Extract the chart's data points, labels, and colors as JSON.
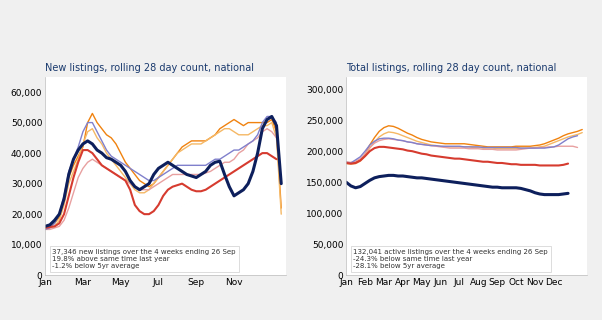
{
  "left_title": "New listings, rolling 28 day count, national",
  "right_title": "Total listings, rolling 28 day count, national",
  "left_annotation": "37,346 new listings over the 4 weeks ending 26 Sep\n19.8% above same time last year\n-1.2% below 5yr average",
  "right_annotation": "132,041 active listings over the 4 weeks ending 26 Sep\n-24.3% below same time last year\n-28.1% below 5yr average",
  "left_xlabels": [
    "Jan",
    "Mar",
    "May",
    "Jul",
    "Sep",
    "Nov"
  ],
  "right_xlabels": [
    "Jan",
    "Feb",
    "Mar",
    "Apr",
    "May",
    "Jun",
    "Jul",
    "Aug",
    "Sep",
    "Oct",
    "Nov",
    "Dec"
  ],
  "left_ylim": [
    0,
    65000
  ],
  "right_ylim": [
    0,
    320000
  ],
  "left_yticks": [
    0,
    10000,
    20000,
    30000,
    40000,
    50000,
    60000
  ],
  "right_yticks": [
    0,
    50000,
    100000,
    150000,
    200000,
    250000,
    300000
  ],
  "title_color": "#1a3a6e",
  "fig_background": "#f0f0f0",
  "panel_background": "#ffffff",
  "colors": {
    "dark_navy": "#0d1f5c",
    "orange": "#f0820f",
    "light_orange": "#f5b865",
    "red": "#d63b2f",
    "pink": "#e8a0a0",
    "purple": "#8080cc"
  },
  "left_navy": [
    16000,
    16500,
    18000,
    20000,
    25000,
    33000,
    38000,
    41000,
    43000,
    44000,
    43000,
    41000,
    40000,
    38500,
    38000,
    37000,
    36000,
    34000,
    31000,
    29000,
    28000,
    29000,
    30000,
    33000,
    35000,
    36000,
    37000,
    36000,
    35000,
    34000,
    33000,
    32500,
    32000,
    33000,
    34000,
    36000,
    37000,
    37346,
    33000,
    29000,
    26000,
    27000,
    28000,
    30000,
    34000,
    40000,
    48000,
    51000,
    52000,
    49000,
    30000,
    null
  ],
  "left_orange": [
    15500,
    16000,
    17000,
    19000,
    24000,
    32000,
    36000,
    39000,
    42000,
    50000,
    53000,
    50000,
    48000,
    46000,
    45000,
    43000,
    40000,
    37000,
    35000,
    33000,
    31000,
    30000,
    29000,
    30000,
    32000,
    34000,
    36000,
    38000,
    40000,
    42000,
    43000,
    44000,
    44000,
    44000,
    44000,
    45000,
    46000,
    48000,
    49000,
    50000,
    51000,
    50000,
    49000,
    50000,
    50000,
    50000,
    50000,
    50000,
    51000,
    47000,
    22000,
    null
  ],
  "left_light_orange": [
    15000,
    15500,
    16000,
    18000,
    23000,
    30000,
    34000,
    38000,
    43000,
    47000,
    48000,
    45000,
    43000,
    40000,
    38000,
    36000,
    34000,
    32000,
    30000,
    28000,
    27000,
    27000,
    28000,
    30000,
    32000,
    34000,
    36000,
    38000,
    40000,
    41000,
    42000,
    43000,
    43000,
    43000,
    44000,
    45000,
    46000,
    47000,
    48000,
    48000,
    47000,
    46000,
    46000,
    46000,
    47000,
    48000,
    49000,
    49000,
    50000,
    45000,
    20000,
    null
  ],
  "left_red": [
    15500,
    15800,
    16000,
    17000,
    20000,
    26000,
    32000,
    37000,
    41000,
    41000,
    40000,
    38000,
    36000,
    35000,
    34000,
    33000,
    32000,
    31000,
    28000,
    23000,
    21000,
    20000,
    20000,
    21000,
    23000,
    26000,
    28000,
    29000,
    29500,
    30000,
    29000,
    28000,
    27500,
    27500,
    28000,
    29000,
    30000,
    31000,
    32000,
    33000,
    34000,
    35000,
    36000,
    37000,
    38000,
    39000,
    40000,
    40000,
    39000,
    38000,
    null,
    null
  ],
  "left_pink": [
    15000,
    15000,
    15500,
    16000,
    18000,
    22000,
    27000,
    32000,
    35000,
    37000,
    38000,
    37000,
    36000,
    35000,
    34000,
    33000,
    32000,
    31000,
    30000,
    29000,
    28000,
    28000,
    28000,
    29000,
    30000,
    31000,
    32000,
    33000,
    33000,
    33000,
    33000,
    33000,
    33000,
    33000,
    33500,
    34000,
    35000,
    36000,
    37000,
    37000,
    38000,
    40000,
    41000,
    43000,
    44000,
    45000,
    47000,
    48000,
    47000,
    45000,
    null,
    null
  ],
  "left_purple": [
    15000,
    15500,
    17000,
    20000,
    26000,
    34000,
    38000,
    42000,
    47000,
    50000,
    50000,
    47000,
    44000,
    41000,
    39000,
    38000,
    37000,
    36000,
    35000,
    34000,
    33000,
    32000,
    31000,
    31000,
    32000,
    33000,
    34000,
    35000,
    36000,
    36000,
    36000,
    36000,
    36000,
    36000,
    36000,
    37000,
    38000,
    38000,
    39000,
    40000,
    41000,
    41000,
    42000,
    43000,
    44000,
    46000,
    50000,
    52000,
    52000,
    50000,
    null,
    null
  ],
  "right_navy": [
    150000,
    144000,
    141000,
    143000,
    148000,
    153000,
    157000,
    159000,
    160000,
    161000,
    161000,
    160000,
    160000,
    159000,
    158000,
    157000,
    157000,
    156000,
    155000,
    154000,
    153000,
    152000,
    151000,
    150000,
    149000,
    148000,
    147000,
    146000,
    145000,
    144000,
    143000,
    142000,
    142000,
    141000,
    141000,
    141000,
    141000,
    140000,
    138000,
    136000,
    133000,
    131000,
    130000,
    130000,
    130000,
    130000,
    131000,
    132000,
    null,
    null,
    null,
    null
  ],
  "right_orange": [
    182000,
    181000,
    182000,
    186000,
    195000,
    210000,
    222000,
    232000,
    238000,
    241000,
    240000,
    237000,
    233000,
    229000,
    226000,
    222000,
    219000,
    217000,
    215000,
    214000,
    213000,
    212000,
    212000,
    212000,
    212000,
    212000,
    211000,
    210000,
    209000,
    208000,
    207000,
    207000,
    207000,
    207000,
    207000,
    207000,
    208000,
    208000,
    208000,
    208000,
    209000,
    210000,
    212000,
    215000,
    218000,
    221000,
    225000,
    228000,
    230000,
    232000,
    235000,
    null
  ],
  "right_light_orange": [
    180000,
    179000,
    180000,
    184000,
    192000,
    205000,
    215000,
    223000,
    228000,
    231000,
    230000,
    228000,
    225000,
    222000,
    219000,
    216000,
    214000,
    212000,
    210000,
    209000,
    208000,
    207000,
    207000,
    207000,
    207000,
    207000,
    207000,
    206000,
    206000,
    205000,
    205000,
    205000,
    204000,
    204000,
    204000,
    204000,
    204000,
    205000,
    205000,
    205000,
    206000,
    207000,
    208000,
    211000,
    214000,
    217000,
    220000,
    223000,
    225000,
    227000,
    230000,
    null
  ],
  "right_red": [
    181000,
    180000,
    181000,
    185000,
    192000,
    200000,
    205000,
    207000,
    207000,
    206000,
    205000,
    204000,
    203000,
    201000,
    200000,
    198000,
    196000,
    195000,
    193000,
    192000,
    191000,
    190000,
    189000,
    188000,
    188000,
    187000,
    186000,
    185000,
    184000,
    183000,
    183000,
    182000,
    181000,
    181000,
    180000,
    179000,
    179000,
    178000,
    178000,
    178000,
    178000,
    177000,
    177000,
    177000,
    177000,
    177000,
    178000,
    180000,
    null,
    null,
    null,
    null
  ],
  "right_pink": [
    183000,
    182000,
    184000,
    188000,
    196000,
    206000,
    213000,
    217000,
    219000,
    220000,
    219000,
    218000,
    217000,
    215000,
    214000,
    212000,
    211000,
    210000,
    209000,
    208000,
    207000,
    206000,
    205000,
    205000,
    205000,
    205000,
    204000,
    204000,
    204000,
    203000,
    203000,
    203000,
    202000,
    202000,
    202000,
    202000,
    202000,
    203000,
    204000,
    205000,
    205000,
    206000,
    206000,
    207000,
    207000,
    208000,
    208000,
    208000,
    208000,
    206000,
    null,
    null
  ],
  "right_purple": [
    182000,
    181000,
    186000,
    191000,
    200000,
    210000,
    216000,
    220000,
    221000,
    221000,
    220000,
    218000,
    217000,
    215000,
    214000,
    212000,
    211000,
    210000,
    209000,
    209000,
    208000,
    208000,
    208000,
    208000,
    208000,
    207000,
    207000,
    207000,
    207000,
    206000,
    206000,
    206000,
    206000,
    206000,
    206000,
    206000,
    206000,
    205000,
    205000,
    205000,
    205000,
    205000,
    205000,
    206000,
    207000,
    210000,
    215000,
    220000,
    223000,
    225000,
    null,
    null
  ]
}
